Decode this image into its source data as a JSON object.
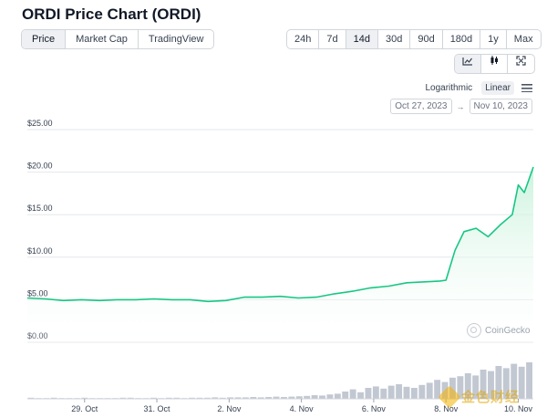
{
  "page": {
    "title": "ORDI Price Chart (ORDI)"
  },
  "tabs": [
    {
      "label": "Price",
      "active": true
    },
    {
      "label": "Market Cap",
      "active": false
    },
    {
      "label": "TradingView",
      "active": false
    }
  ],
  "ranges": [
    {
      "label": "24h",
      "active": false
    },
    {
      "label": "7d",
      "active": false
    },
    {
      "label": "14d",
      "active": true
    },
    {
      "label": "30d",
      "active": false
    },
    {
      "label": "90d",
      "active": false
    },
    {
      "label": "180d",
      "active": false
    },
    {
      "label": "1y",
      "active": false
    },
    {
      "label": "Max",
      "active": false
    }
  ],
  "view_buttons": [
    {
      "icon": "line-chart-icon",
      "active": true
    },
    {
      "icon": "candlestick-icon",
      "active": false
    },
    {
      "icon": "fullscreen-icon",
      "active": false
    }
  ],
  "scale": {
    "logarithmic": "Logarithmic",
    "linear": "Linear",
    "active": "linear",
    "menu_icon": "menu-icon"
  },
  "date_range": {
    "from": "Oct 27, 2023",
    "to": "Nov 10, 2023",
    "arrow": "→"
  },
  "watermark": {
    "label": "CoinGecko",
    "icon": "coingecko-logo-icon"
  },
  "stamp": {
    "text": "金色财经",
    "icon": "jinse-logo-icon"
  },
  "colors": {
    "line": "#16c784",
    "area_top": "#c9f2dc",
    "volume": "#c2c8d2",
    "grid": "#e5e7eb",
    "accent": "#16a34a"
  },
  "chart_data": {
    "type": "area",
    "title": "",
    "xlabel": "",
    "ylabel": "",
    "y_ticks": [
      "$0.00",
      "$5.00",
      "$10.00",
      "$15.00",
      "$20.00",
      "$25.00"
    ],
    "y_tick_values": [
      0,
      5,
      10,
      15,
      20,
      25
    ],
    "ylim": [
      0,
      25
    ],
    "x_range": [
      "2023-10-27T10:00",
      "2023-11-10T10:00"
    ],
    "x_ticks": [
      {
        "date": "2023-10-29",
        "label": "29. Oct"
      },
      {
        "date": "2023-10-31",
        "label": "31. Oct"
      },
      {
        "date": "2023-11-02",
        "label": "2. Nov"
      },
      {
        "date": "2023-11-04",
        "label": "4. Nov"
      },
      {
        "date": "2023-11-06",
        "label": "6. Nov"
      },
      {
        "date": "2023-11-08",
        "label": "8. Nov"
      },
      {
        "date": "2023-11-10",
        "label": "10. Nov"
      }
    ],
    "grid": true,
    "series": [
      {
        "x": [
          "2023-10-27T10:00",
          "2023-10-27T22:00",
          "2023-10-28T10:00",
          "2023-10-28T22:00",
          "2023-10-29T10:00",
          "2023-10-29T22:00",
          "2023-10-30T10:00",
          "2023-10-30T22:00",
          "2023-10-31T10:00",
          "2023-10-31T22:00",
          "2023-11-01T10:00",
          "2023-11-01T22:00",
          "2023-11-02T10:00",
          "2023-11-02T22:00",
          "2023-11-03T10:00",
          "2023-11-03T22:00",
          "2023-11-04T10:00",
          "2023-11-04T22:00",
          "2023-11-05T10:00",
          "2023-11-05T22:00",
          "2023-11-06T10:00",
          "2023-11-06T22:00",
          "2023-11-07T10:00",
          "2023-11-07T20:00",
          "2023-11-08T00:00",
          "2023-11-08T06:00",
          "2023-11-08T12:00",
          "2023-11-08T20:00",
          "2023-11-09T04:00",
          "2023-11-09T12:00",
          "2023-11-09T20:00",
          "2023-11-10T00:00",
          "2023-11-10T04:00",
          "2023-11-10T10:00"
        ],
        "y": [
          5.2,
          5.1,
          4.9,
          5.0,
          4.9,
          5.0,
          5.0,
          5.1,
          5.0,
          5.0,
          4.8,
          4.9,
          5.3,
          5.3,
          5.4,
          5.2,
          5.3,
          5.7,
          6.0,
          6.4,
          6.6,
          7.0,
          7.1,
          7.2,
          7.3,
          10.8,
          13.0,
          13.4,
          12.4,
          13.8,
          15.0,
          18.5,
          17.6,
          20.6
        ]
      }
    ]
  },
  "volume_data": {
    "type": "bar",
    "x_range": [
      "2023-10-27T10:00",
      "2023-11-10T10:00"
    ],
    "values": [
      3,
      2,
      2,
      3,
      2,
      2,
      2,
      3,
      2,
      2,
      2,
      2,
      3,
      3,
      2,
      2,
      3,
      2,
      3,
      3,
      2,
      3,
      3,
      3,
      4,
      3,
      4,
      4,
      4,
      5,
      4,
      5,
      6,
      5,
      6,
      7,
      8,
      10,
      9,
      12,
      14,
      20,
      26,
      18,
      30,
      34,
      28,
      36,
      40,
      33,
      30,
      38,
      44,
      52,
      46,
      58,
      62,
      70,
      64,
      80,
      76,
      90,
      84,
      96,
      88,
      100
    ]
  }
}
